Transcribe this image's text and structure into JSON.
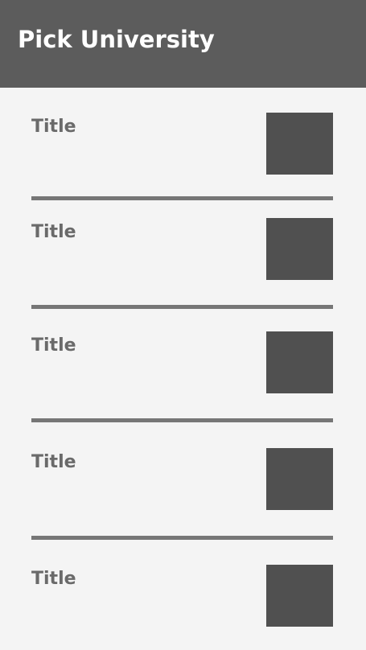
{
  "header": {
    "title": "Pick University",
    "background_color": "#5c5c5c",
    "title_color": "#ffffff"
  },
  "university_list": {
    "items": [
      {
        "title": "Title",
        "thumbnail": "image-placeholder"
      },
      {
        "title": "Title",
        "thumbnail": "image-placeholder"
      },
      {
        "title": "Title",
        "thumbnail": "image-placeholder"
      },
      {
        "title": "Title",
        "thumbnail": "image-placeholder"
      },
      {
        "title": "Title",
        "thumbnail": "image-placeholder"
      }
    ]
  },
  "colors": {
    "page_background": "#f4f4f4",
    "item_title": "#6a6a6a",
    "thumbnail": "#505050",
    "divider": "#767676"
  }
}
